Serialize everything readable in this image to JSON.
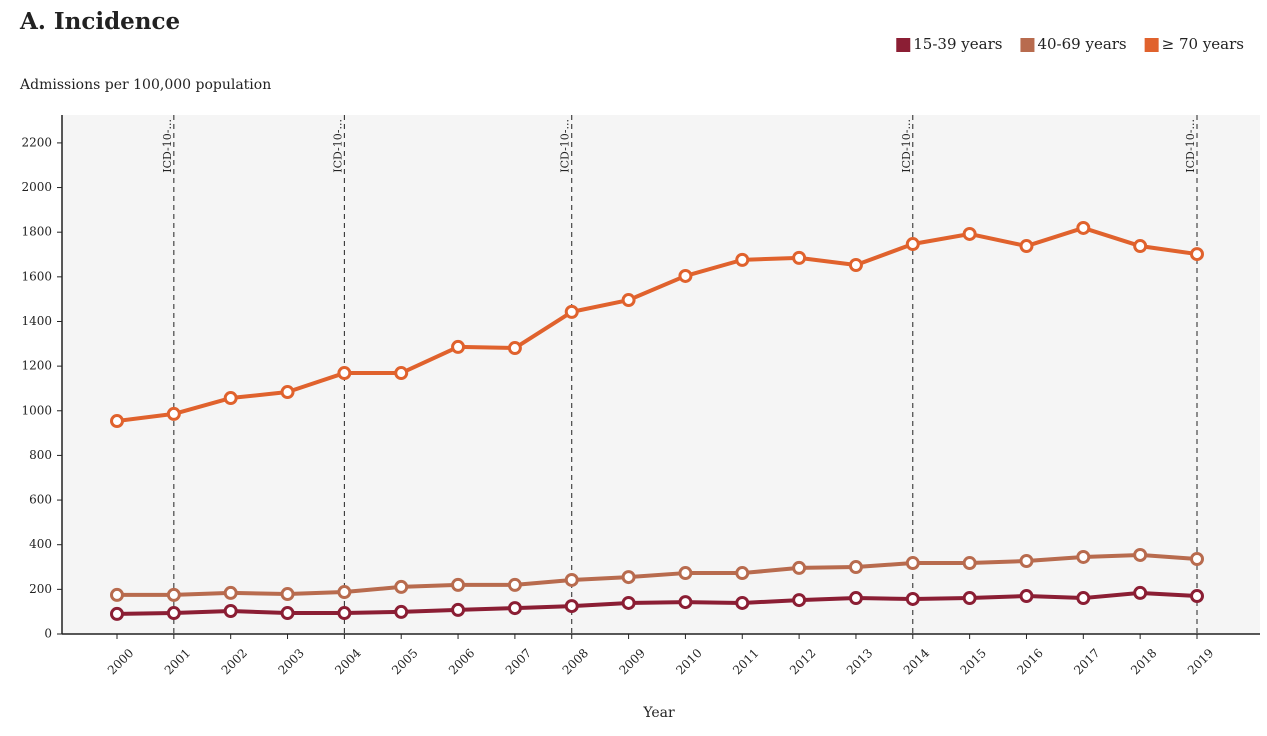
{
  "chart_data": {
    "type": "line",
    "title": "A. Incidence",
    "y_label": "Admissions per 100,000 population",
    "x_label": "Year",
    "categories": [
      "2000",
      "2001",
      "2002",
      "2003",
      "2004",
      "2005",
      "2006",
      "2007",
      "2008",
      "2009",
      "2010",
      "2011",
      "2012",
      "2013",
      "2014",
      "2015",
      "2016",
      "2017",
      "2018",
      "2019"
    ],
    "series": [
      {
        "name": "15-39 years",
        "color": "#8b1e34",
        "values": [
          90,
          94,
          103,
          94,
          94,
          99,
          108,
          116,
          125,
          139,
          143,
          139,
          152,
          161,
          157,
          161,
          170,
          161,
          184,
          170
        ]
      },
      {
        "name": "40-69 years",
        "color": "#b86b4e",
        "values": [
          175,
          175,
          184,
          179,
          188,
          211,
          220,
          220,
          242,
          255,
          273,
          273,
          296,
          300,
          318,
          318,
          327,
          345,
          354,
          336
        ]
      },
      {
        "name": "≥ 70 years",
        "color": "#e0622d",
        "values": [
          954,
          986,
          1057,
          1084,
          1169,
          1169,
          1286,
          1281,
          1443,
          1496,
          1604,
          1676,
          1685,
          1653,
          1747,
          1792,
          1738,
          1819,
          1738,
          1702
        ]
      }
    ],
    "annotations": [
      {
        "category": "2001",
        "text": "ICD-10-..."
      },
      {
        "category": "2004",
        "text": "ICD-10-..."
      },
      {
        "category": "2008",
        "text": "ICD-10-..."
      },
      {
        "category": "2014",
        "text": "ICD-10-..."
      },
      {
        "category": "2019",
        "text": "ICD-10-..."
      }
    ],
    "ylim": [
      0,
      2325
    ],
    "yticks": [
      0,
      200,
      400,
      600,
      800,
      1000,
      1200,
      1400,
      1600,
      1800,
      2000,
      2200
    ],
    "legend": "top-right"
  }
}
